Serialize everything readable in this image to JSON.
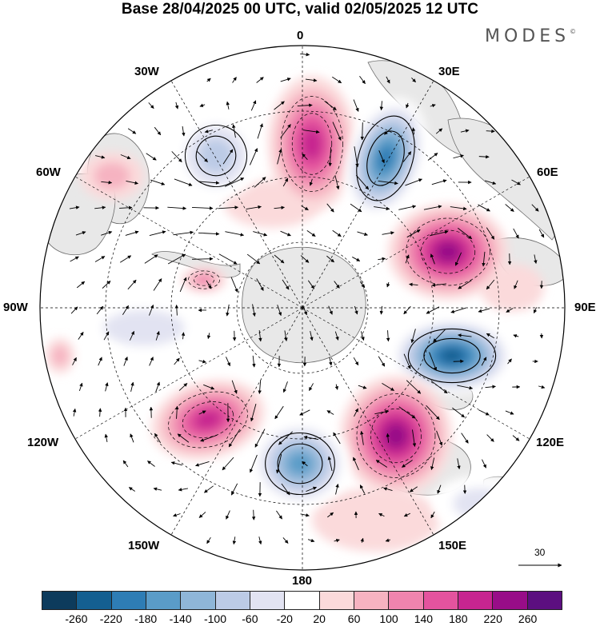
{
  "title": "Base 28/04/2025 00 UTC, valid 02/05/2025 12 UTC",
  "brand": "MODES",
  "brand_mark": "©",
  "lon_labels": {
    "lon_0": "0",
    "lon_30e": "30E",
    "lon_60e": "60E",
    "lon_90e": "90E",
    "lon_120e": "120E",
    "lon_150e": "150E",
    "lon_180": "180",
    "lon_150w": "150W",
    "lon_120w": "120W",
    "lon_90w": "90W",
    "lon_60w": "60W",
    "lon_30w": "30W"
  },
  "reference_vector": "30",
  "colorbar": {
    "colors": [
      "#0d3b5c",
      "#145f91",
      "#2e7db5",
      "#5a9cc8",
      "#8fb6d8",
      "#bccbe6",
      "#e2e3f2",
      "#ffffff",
      "#fbdadb",
      "#f6b3c1",
      "#ef84ae",
      "#e4539e",
      "#c72590",
      "#980d88",
      "#5c0f80"
    ],
    "ticks": [
      "-260",
      "-220",
      "-180",
      "-140",
      "-100",
      "-60",
      "-20",
      "20",
      "60",
      "100",
      "140",
      "180",
      "220",
      "260"
    ]
  },
  "map": {
    "land_color": "#e8e8e8",
    "anomaly_centers": [
      {
        "id": "pos-0e",
        "kind": "positive",
        "level": 180
      },
      {
        "id": "neg-30e",
        "kind": "negative",
        "level": -220
      },
      {
        "id": "pos-60e",
        "kind": "positive",
        "level": 220
      },
      {
        "id": "neg-100e",
        "kind": "negative",
        "level": -260
      },
      {
        "id": "pos-140e",
        "kind": "positive",
        "level": 220
      },
      {
        "id": "neg-170w",
        "kind": "negative",
        "level": -180
      },
      {
        "id": "pos-130w",
        "kind": "positive",
        "level": 180
      },
      {
        "id": "neg-25w",
        "kind": "negative",
        "level": -100
      },
      {
        "id": "pos-50w",
        "kind": "positive",
        "level": 60
      }
    ]
  }
}
